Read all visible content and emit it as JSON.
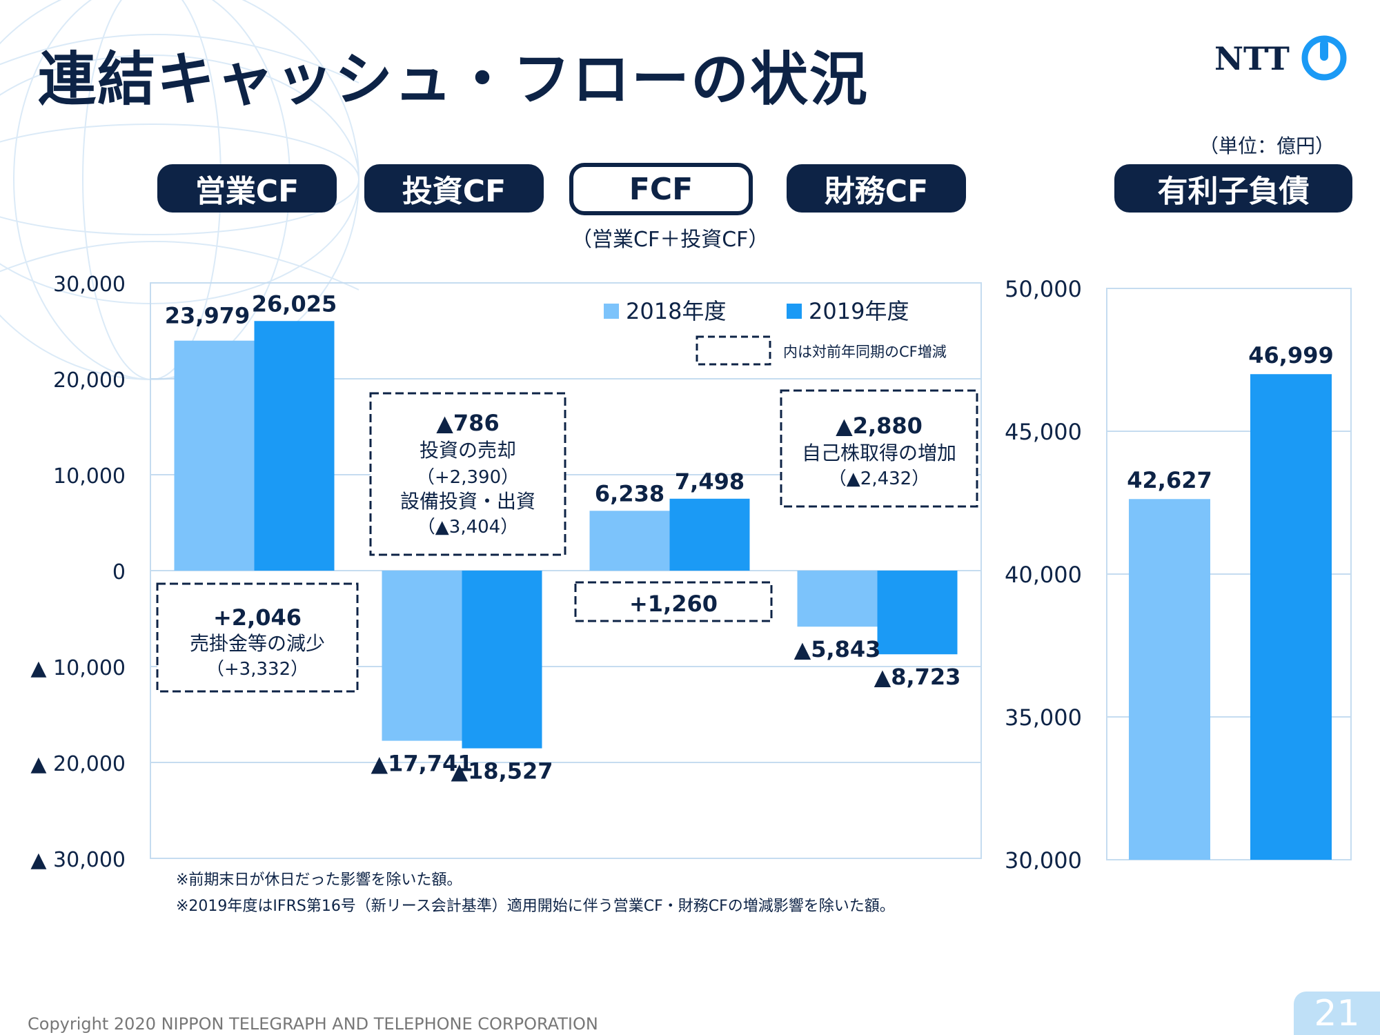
{
  "title": "連結キャッシュ・フローの状況",
  "logo_text": "NTT",
  "unit": "（単位：億円）",
  "categories": [
    {
      "label": "営業CF",
      "style": "filled"
    },
    {
      "label": "投資CF",
      "style": "filled"
    },
    {
      "label": "FCF",
      "style": "outline",
      "sublabel": "（営業CF＋投資CF）"
    },
    {
      "label": "財務CF",
      "style": "filled"
    }
  ],
  "debt_label": "有利子負債",
  "colors": {
    "navy": "#0d2346",
    "series_2018": "#7cc3fb",
    "series_2019": "#1b9af5",
    "grid": "#c5dcf0"
  },
  "chart_data": [
    {
      "type": "bar",
      "categories": [
        "営業CF",
        "投資CF",
        "FCF",
        "財務CF"
      ],
      "series": [
        {
          "name": "2018年度",
          "values": [
            23979,
            -17741,
            6238,
            -5843
          ]
        },
        {
          "name": "2019年度",
          "values": [
            26025,
            -18527,
            7498,
            -8723
          ]
        }
      ],
      "value_labels": [
        [
          "23,979",
          "▲17,741",
          "6,238",
          "▲5,843"
        ],
        [
          "26,025",
          "▲18,527",
          "7,498",
          "▲8,723"
        ]
      ],
      "ylim": [
        -30000,
        30000
      ],
      "yticks": [
        30000,
        20000,
        10000,
        0,
        -10000,
        -20000,
        -30000
      ],
      "ytick_labels": [
        "30,000",
        "20,000",
        "10,000",
        "0",
        "▲ 10,000",
        "▲ 20,000",
        "▲ 30,000"
      ],
      "legend": {
        "placement": "top-right",
        "items": [
          "2018年度",
          "2019年度"
        ],
        "dashed_note": "内は対前年同期のCF増減"
      },
      "annotations": [
        {
          "category": "営業CF",
          "lines": [
            "+2,046",
            "売掛金等の減少",
            "（+3,332）"
          ]
        },
        {
          "category": "投資CF",
          "lines": [
            "▲786",
            "投資の売却",
            "（+2,390）",
            "設備投資・出資",
            "（▲3,404）"
          ]
        },
        {
          "category": "FCF",
          "lines": [
            "+1,260"
          ]
        },
        {
          "category": "財務CF",
          "lines": [
            "▲2,880",
            "自己株取得の増加",
            "（▲2,432）"
          ]
        }
      ],
      "grid": true
    },
    {
      "type": "bar",
      "title": "有利子負債",
      "categories": [
        "2018年度",
        "2019年度"
      ],
      "values": [
        42627,
        46999
      ],
      "value_labels": [
        "42,627",
        "46,999"
      ],
      "ylim": [
        30000,
        50000
      ],
      "yticks": [
        50000,
        45000,
        40000,
        35000,
        30000
      ],
      "ytick_labels": [
        "50,000",
        "45,000",
        "40,000",
        "35,000",
        "30,000"
      ],
      "grid": true
    }
  ],
  "footnotes": [
    "※前期末日が休日だった影響を除いた額。",
    "※2019年度はIFRS第16号（新リース会計基準）適用開始に伴う営業CF・財務CFの増減影響を除いた額。"
  ],
  "copyright": "Copyright 2020 NIPPON TELEGRAPH AND TELEPHONE CORPORATION",
  "page_number": "21"
}
